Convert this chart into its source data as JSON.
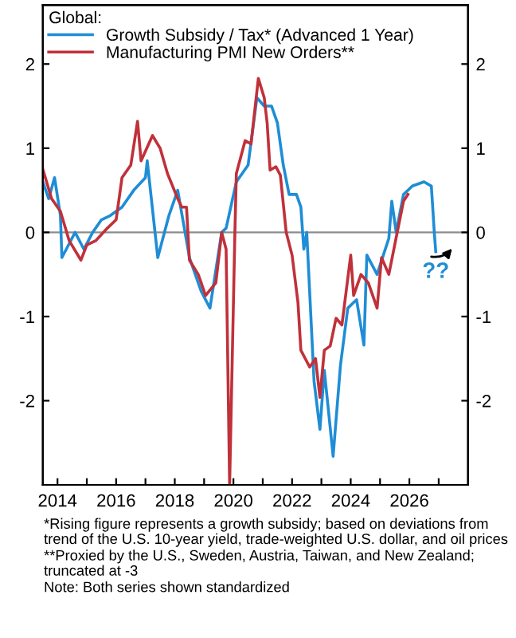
{
  "chart_data": {
    "type": "line",
    "legend_title": "Global:",
    "legend": "top left",
    "xlim": [
      2013.5,
      2028.0
    ],
    "xticks": [
      2014,
      {
        "value": 2015,
        "label": null
      },
      2016,
      {
        "value": 2017,
        "label": null
      },
      2018,
      {
        "value": 2019,
        "label": null
      },
      2020,
      {
        "value": 2021,
        "label": null
      },
      2022,
      {
        "value": 2023,
        "label": null
      },
      2024,
      {
        "value": 2025,
        "label": null
      },
      2026,
      {
        "value": 2027,
        "label": null
      }
    ],
    "ylim": [
      -3,
      2.7
    ],
    "yticks": [
      -2,
      -1,
      0,
      1,
      2
    ],
    "y2lim": [
      -3,
      2.7
    ],
    "y2ticks": [
      -2,
      -1,
      0,
      1,
      2
    ],
    "grid": false,
    "ref_lines": [
      {
        "axis": "y",
        "value": 0,
        "color": "#8c8c8c"
      }
    ],
    "series": [
      {
        "name": "Growth Subsidy / Tax* (Advanced 1 Year)",
        "color": "#1f8dd6",
        "x": [
          2013.5,
          2013.7,
          2013.9,
          2014.1,
          2014.15,
          2014.3,
          2014.6,
          2014.9,
          2015.2,
          2015.5,
          2015.8,
          2016.2,
          2016.6,
          2017.0,
          2017.06,
          2017.42,
          2017.8,
          2018.1,
          2018.5,
          2018.9,
          2019.2,
          2019.6,
          2019.75,
          2020.1,
          2020.5,
          2020.8,
          2021.05,
          2021.3,
          2021.5,
          2021.7,
          2021.9,
          2022.15,
          2022.3,
          2022.4,
          2022.5,
          2022.75,
          2022.95,
          2023.1,
          2023.4,
          2023.65,
          2023.9,
          2024.2,
          2024.45,
          2024.55,
          2024.9,
          2025.3,
          2025.4,
          2025.55,
          2025.8,
          2026.1,
          2026.5,
          2026.75,
          2026.85,
          2026.9
        ],
        "values": [
          0.6,
          0.4,
          0.65,
          0.2,
          -0.3,
          -0.2,
          0.0,
          -0.2,
          0.0,
          0.15,
          0.2,
          0.3,
          0.5,
          0.65,
          0.85,
          -0.3,
          0.2,
          0.5,
          -0.3,
          -0.7,
          -0.9,
          0.0,
          0.05,
          0.6,
          0.8,
          1.6,
          1.5,
          1.5,
          1.3,
          0.8,
          0.45,
          0.45,
          0.3,
          -0.2,
          0.0,
          -1.77,
          -2.34,
          -1.64,
          -2.66,
          -1.58,
          -0.9,
          -0.8,
          -1.34,
          -0.27,
          -0.5,
          -0.07,
          0.37,
          0.0,
          0.45,
          0.55,
          0.6,
          0.55,
          0.0,
          -0.23
        ]
      },
      {
        "name": "Manufacturing PMI New Orders**",
        "color": "#c0313a",
        "x": [
          2013.5,
          2013.8,
          2014.1,
          2014.4,
          2014.8,
          2015.0,
          2015.3,
          2015.7,
          2016.0,
          2016.2,
          2016.5,
          2016.73,
          2016.85,
          2017.24,
          2017.5,
          2017.75,
          2018.1,
          2018.24,
          2018.4,
          2018.5,
          2018.8,
          2019.05,
          2019.4,
          2019.6,
          2019.75,
          2019.87,
          2020.05,
          2020.1,
          2020.4,
          2020.6,
          2020.85,
          2021.05,
          2021.15,
          2021.25,
          2021.45,
          2021.6,
          2021.8,
          2022.0,
          2022.2,
          2022.3,
          2022.6,
          2022.8,
          2022.95,
          2023.1,
          2023.3,
          2023.5,
          2023.7,
          2024.0,
          2024.1,
          2024.35,
          2024.6,
          2024.9,
          2025.05,
          2025.3,
          2025.5,
          2025.8,
          2025.95
        ],
        "values": [
          0.75,
          0.4,
          0.25,
          -0.1,
          -0.33,
          -0.15,
          -0.1,
          0.05,
          0.15,
          0.65,
          0.8,
          1.32,
          0.85,
          1.15,
          1.0,
          0.7,
          0.4,
          0.3,
          0.3,
          -0.33,
          -0.5,
          -0.75,
          -0.6,
          0.0,
          -0.2,
          -3,
          0.0,
          0.7,
          1.09,
          1.05,
          1.83,
          1.6,
          1.3,
          0.74,
          0.78,
          0.68,
          0.0,
          -0.27,
          -0.83,
          -1.4,
          -1.6,
          -1.5,
          -1.96,
          -1.4,
          -1.35,
          -1.02,
          -1.1,
          -0.27,
          -0.75,
          -0.5,
          -0.6,
          -0.9,
          -0.3,
          -0.5,
          -0.15,
          0.37,
          0.45
        ]
      }
    ],
    "annotations": [
      {
        "text": "??",
        "x": 2026.9,
        "y": -0.23
      },
      "*Rising figure represents a growth subsidy; based on deviations from trend of the U.S. 10-year yield, trade-weighted U.S. dollar, and oil prices",
      "**Proxied by the U.S., Sweden, Austria, Taiwan, and New Zealand; truncated at -3",
      "Note: Both series shown standardized"
    ]
  }
}
